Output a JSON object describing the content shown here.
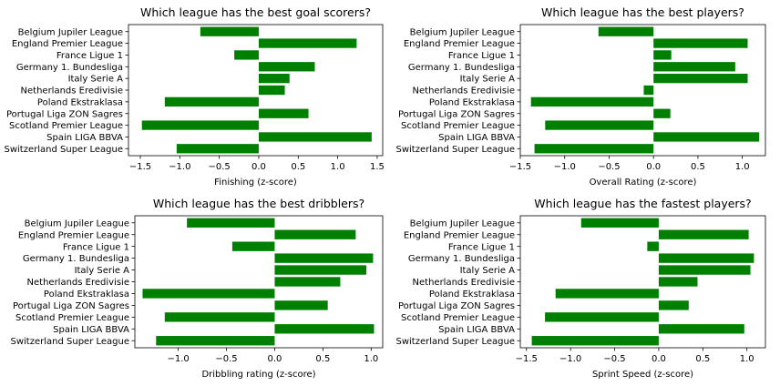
{
  "chart_data": [
    {
      "type": "bar",
      "orientation": "horizontal",
      "title": "Which league has the best goal scorers?",
      "xlabel": "Finishing (z-score)",
      "ylabel": "",
      "categories": [
        "Belgium Jupiler League",
        "England Premier League",
        "France Ligue 1",
        "Germany 1. Bundesliga",
        "Italy Serie A",
        "Netherlands Eredivisie",
        "Poland Ekstraklasa",
        "Portugal Liga ZON Sagres",
        "Scotland Premier League",
        "Spain LIGA BBVA",
        "Switzerland Super League"
      ],
      "values": [
        -0.74,
        1.24,
        -0.31,
        0.71,
        0.39,
        0.33,
        -1.19,
        0.63,
        -1.48,
        1.43,
        -1.04
      ],
      "xlim": [
        -1.65,
        1.57
      ],
      "xticks": [
        -1.5,
        -1.0,
        -0.5,
        0.0,
        0.5,
        1.0,
        1.5
      ],
      "xtick_labels": [
        "−1.5",
        "−1.0",
        "−0.5",
        "0.0",
        "0.5",
        "1.0",
        "1.5"
      ],
      "bar_color": "#008000",
      "grid": false
    },
    {
      "type": "bar",
      "orientation": "horizontal",
      "title": "Which league has the best players?",
      "xlabel": "Overall Rating (z-score)",
      "ylabel": "",
      "categories": [
        "Belgium Jupiler League",
        "England Premier League",
        "France Ligue 1",
        "Germany 1. Bundesliga",
        "Italy Serie A",
        "Netherlands Eredivisie",
        "Poland Ekstraklasa",
        "Portugal Liga ZON Sagres",
        "Scotland Premier League",
        "Spain LIGA BBVA",
        "Switzerland Super League"
      ],
      "values": [
        -0.62,
        1.06,
        0.2,
        0.92,
        1.06,
        -0.11,
        -1.38,
        0.19,
        -1.22,
        1.19,
        -1.34
      ],
      "xlim": [
        -1.5,
        1.26
      ],
      "xticks": [
        -1.5,
        -1.0,
        -0.5,
        0.0,
        0.5,
        1.0
      ],
      "xtick_labels": [
        "−1.5",
        "−1.0",
        "−0.5",
        "0.0",
        "0.5",
        "1.0"
      ],
      "bar_color": "#008000",
      "grid": false
    },
    {
      "type": "bar",
      "orientation": "horizontal",
      "title": "Which league has the best dribblers?",
      "xlabel": "Dribbling rating (z-score)",
      "ylabel": "",
      "categories": [
        "Belgium Jupiler League",
        "England Premier League",
        "France Ligue 1",
        "Germany 1. Bundesliga",
        "Italy Serie A",
        "Netherlands Eredivisie",
        "Poland Ekstraklasa",
        "Portugal Liga ZON Sagres",
        "Scotland Premier League",
        "Spain LIGA BBVA",
        "Switzerland Super League"
      ],
      "values": [
        -0.91,
        0.84,
        -0.44,
        1.02,
        0.95,
        0.68,
        -1.37,
        0.55,
        -1.14,
        1.03,
        -1.23
      ],
      "xlim": [
        -1.45,
        1.12
      ],
      "xticks": [
        -1.0,
        -0.5,
        0.0,
        0.5,
        1.0
      ],
      "xtick_labels": [
        "−1.0",
        "−0.5",
        "0.0",
        "0.5",
        "1.0"
      ],
      "bar_color": "#008000",
      "grid": false
    },
    {
      "type": "bar",
      "orientation": "horizontal",
      "title": "Which league has the fastest players?",
      "xlabel": "Sprint Speed (z-score)",
      "ylabel": "",
      "categories": [
        "Belgium Jupiler League",
        "England Premier League",
        "France Ligue 1",
        "Germany 1. Bundesliga",
        "Italy Serie A",
        "Netherlands Eredivisie",
        "Poland Ekstraklasa",
        "Portugal Liga ZON Sagres",
        "Scotland Premier League",
        "Spain LIGA BBVA",
        "Switzerland Super League"
      ],
      "values": [
        -0.88,
        1.02,
        -0.13,
        1.08,
        1.04,
        0.44,
        -1.17,
        0.34,
        -1.29,
        0.97,
        -1.44
      ],
      "xlim": [
        -1.57,
        1.21
      ],
      "xticks": [
        -1.5,
        -1.0,
        -0.5,
        0.0,
        0.5,
        1.0
      ],
      "xtick_labels": [
        "−1.5",
        "−1.0",
        "−0.5",
        "0.0",
        "0.5",
        "1.0"
      ],
      "bar_color": "#008000",
      "grid": false
    }
  ]
}
